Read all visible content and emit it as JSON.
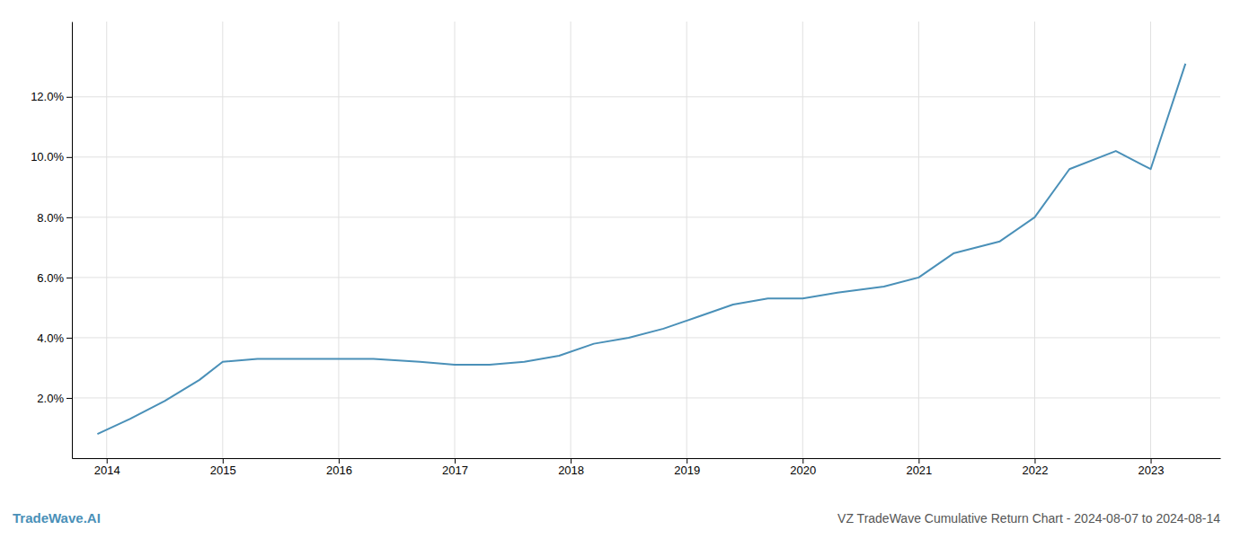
{
  "chart_data": {
    "type": "line",
    "title": "VZ TradeWave Cumulative Return Chart - 2024-08-07 to 2024-08-14",
    "annotations": [
      "TradeWave.AI"
    ],
    "x": [
      2013.92,
      2014.2,
      2014.5,
      2014.8,
      2015.0,
      2015.3,
      2015.7,
      2016.0,
      2016.3,
      2016.7,
      2017.0,
      2017.3,
      2017.6,
      2017.9,
      2018.2,
      2018.5,
      2018.8,
      2019.1,
      2019.4,
      2019.7,
      2020.0,
      2020.3,
      2020.7,
      2021.0,
      2021.3,
      2021.7,
      2022.0,
      2022.3,
      2022.7,
      2023.0,
      2023.3
    ],
    "values": [
      0.008,
      0.013,
      0.019,
      0.026,
      0.032,
      0.033,
      0.033,
      0.033,
      0.033,
      0.032,
      0.031,
      0.031,
      0.032,
      0.034,
      0.038,
      0.04,
      0.043,
      0.047,
      0.051,
      0.053,
      0.053,
      0.055,
      0.057,
      0.06,
      0.068,
      0.072,
      0.08,
      0.096,
      0.102,
      0.096,
      0.131
    ],
    "color": "#4a90b8",
    "xlim": [
      2013.7,
      2023.6
    ],
    "ylim": [
      0.0,
      0.145
    ],
    "xticks": [
      2014,
      2015,
      2016,
      2017,
      2018,
      2019,
      2020,
      2021,
      2022,
      2023
    ],
    "yticks": [
      {
        "value": 0.02,
        "label": "2.0%"
      },
      {
        "value": 0.04,
        "label": "4.0%"
      },
      {
        "value": 0.06,
        "label": "6.0%"
      },
      {
        "value": 0.08,
        "label": "8.0%"
      },
      {
        "value": 0.1,
        "label": "10.0%"
      },
      {
        "value": 0.12,
        "label": "12.0%"
      }
    ],
    "grid": true
  }
}
